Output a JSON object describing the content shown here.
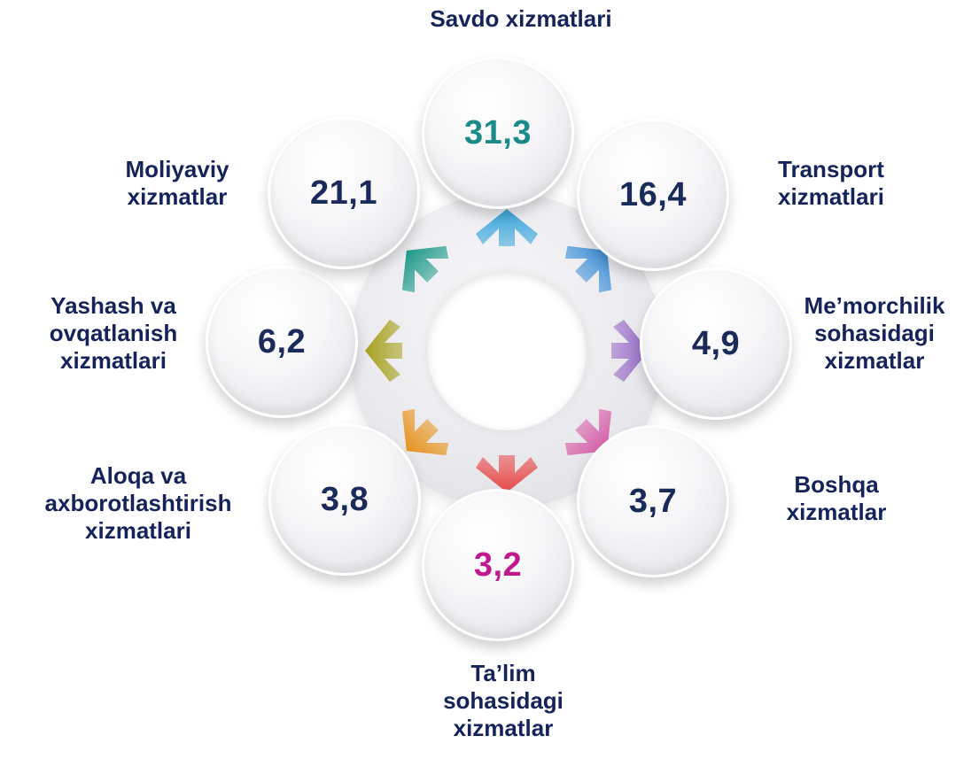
{
  "categories": [
    {
      "key": "savdo",
      "label_lines": [
        "Savdo xizmatlari"
      ],
      "value": "31,3",
      "value_color": "#1a8a8a",
      "arrow_color": "#3aa6dd"
    },
    {
      "key": "transport",
      "label_lines": [
        "Transport",
        "xizmatlari"
      ],
      "value": "16,4",
      "value_color": "#1a2a5a",
      "arrow_color": "#3d8fd8"
    },
    {
      "key": "memorchilik",
      "label_lines": [
        "Me’morchilik",
        "sohasidagi",
        "xizmatlar"
      ],
      "value": "4,9",
      "value_color": "#1a2a5a",
      "arrow_color": "#9a6cc8"
    },
    {
      "key": "boshqa",
      "label_lines": [
        "Boshqa",
        "xizmatlar"
      ],
      "value": "3,7",
      "value_color": "#1a2a5a",
      "arrow_color": "#d65aa6"
    },
    {
      "key": "talim",
      "label_lines": [
        "Ta’lim",
        "sohasidagi",
        "xizmatlar"
      ],
      "value": "3,2",
      "value_color": "#c2188f",
      "arrow_color": "#e84a4a"
    },
    {
      "key": "aloqa",
      "label_lines": [
        "Aloqa va",
        "axborotlashtirish",
        "xizmatlari"
      ],
      "value": "3,8",
      "value_color": "#1a2a5a",
      "arrow_color": "#e8941e"
    },
    {
      "key": "yashash",
      "label_lines": [
        "Yashash va",
        "ovqatlanish",
        "xizmatlari"
      ],
      "value": "6,2",
      "value_color": "#1a2a5a",
      "arrow_color": "#a8a21e"
    },
    {
      "key": "moliyaviy",
      "label_lines": [
        "Moliyaviy",
        "xizmatlar"
      ],
      "value": "21,1",
      "value_color": "#1a2a5a",
      "arrow_color": "#1e9a8a"
    }
  ]
}
